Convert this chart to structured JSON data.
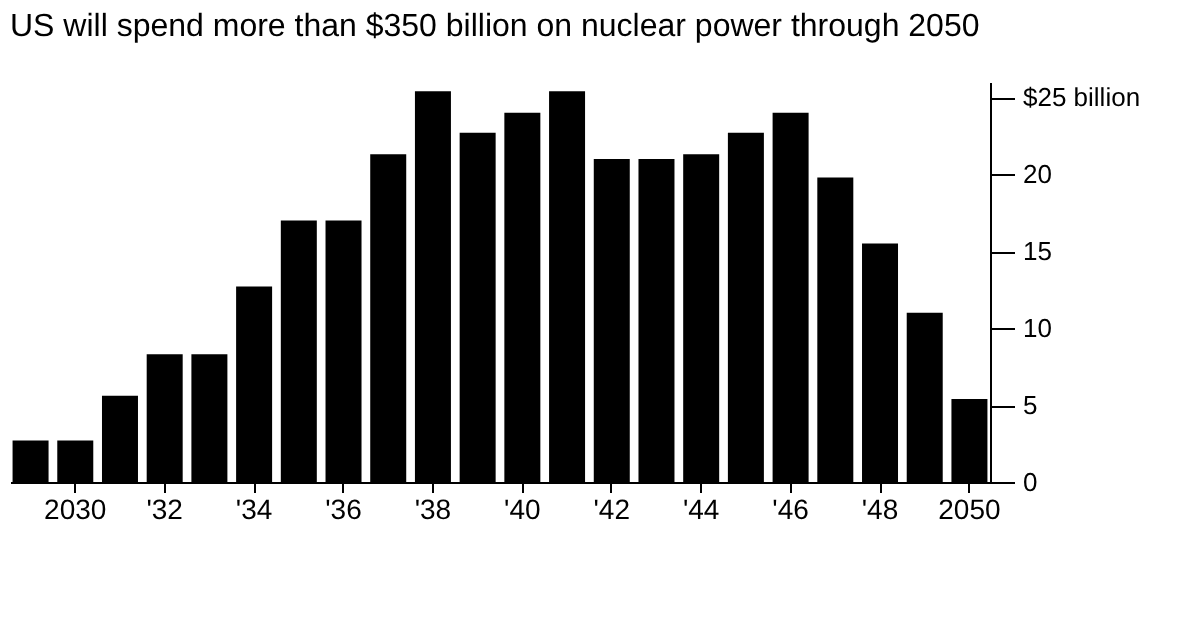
{
  "chart_data": {
    "type": "bar",
    "title": "US will spend more than $350 billion on nuclear power through 2050",
    "categories": [
      null,
      "2030",
      null,
      "'32",
      null,
      "'34",
      null,
      "'36",
      null,
      "'38",
      null,
      "'40",
      null,
      "'42",
      null,
      "'44",
      null,
      "'46",
      null,
      "'48",
      null,
      "2050"
    ],
    "values": [
      2.7,
      2.7,
      5.6,
      8.3,
      8.3,
      12.7,
      17.0,
      17.0,
      21.3,
      25.4,
      22.7,
      24.0,
      25.4,
      21.0,
      21.0,
      21.3,
      22.7,
      24.0,
      19.8,
      15.5,
      11.0,
      5.4
    ],
    "color": "#000000",
    "ylim": [
      0,
      26
    ],
    "yticks": [
      0,
      5,
      10,
      15,
      20,
      {
        "value": 25,
        "label": "$25 billion"
      }
    ],
    "grid": false
  }
}
